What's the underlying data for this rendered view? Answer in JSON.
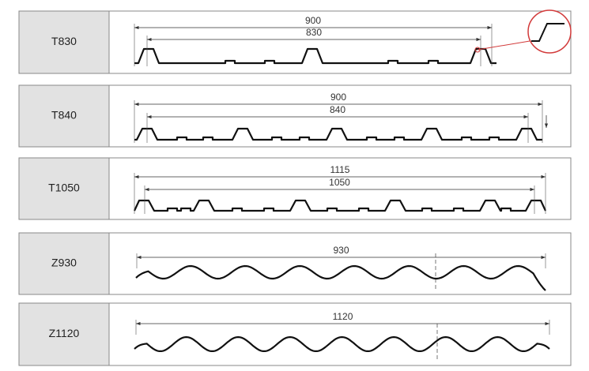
{
  "profiles": [
    {
      "label": "T830",
      "dimensions": [
        "900",
        "830"
      ]
    },
    {
      "label": "T840",
      "dimensions": [
        "900",
        "840"
      ]
    },
    {
      "label": "T1050",
      "dimensions": [
        "1115",
        "1050"
      ]
    },
    {
      "label": "Z930",
      "dimensions": [
        "930"
      ]
    },
    {
      "label": "Z1120",
      "dimensions": [
        "1120"
      ]
    }
  ]
}
